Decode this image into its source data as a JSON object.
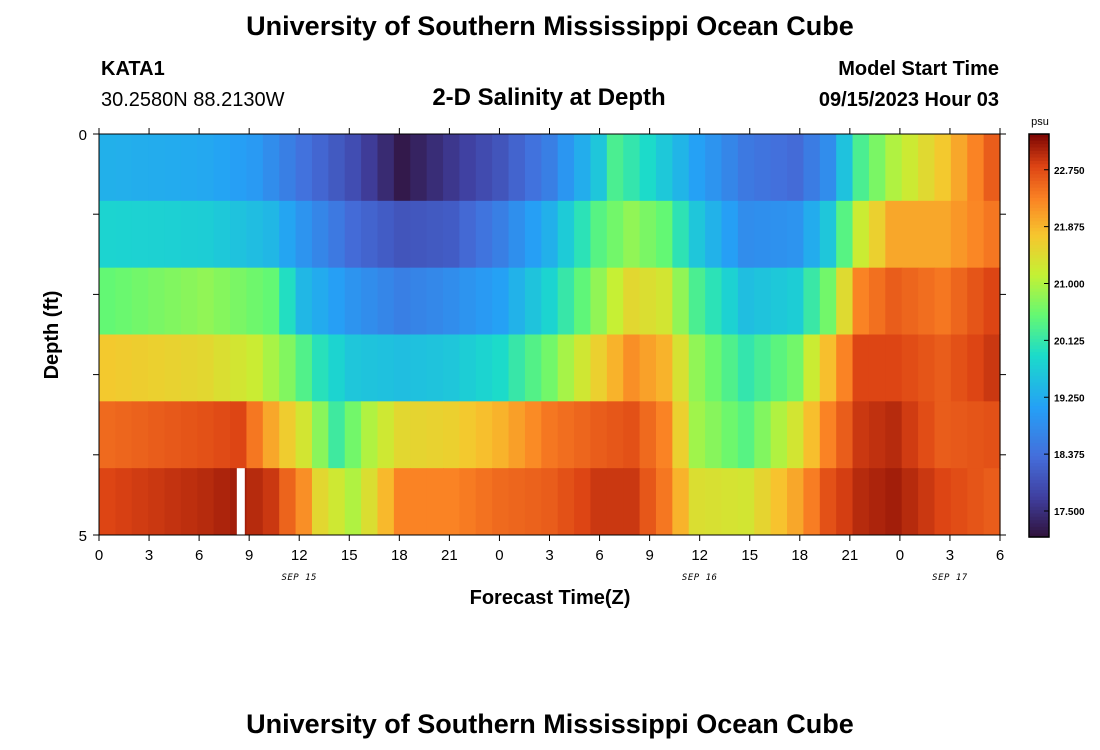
{
  "header": {
    "title": "University of Southern Mississippi Ocean Cube",
    "station": "KATA1",
    "coords": "30.2580N  88.2130W",
    "chart_title": "2-D Salinity at Depth",
    "model_label": "Model Start Time",
    "model_time": "09/15/2023 Hour 03"
  },
  "footer": {
    "title": "University of Southern Mississippi Ocean Cube"
  },
  "colors": {
    "background": "#ffffff",
    "axis": "#000000",
    "missing": "#ffffff"
  },
  "chart_data": {
    "type": "heatmap",
    "title": "2-D Salinity at Depth",
    "xlabel": "Forecast Time(Z)",
    "ylabel": "Depth (ft)",
    "x_hours": [
      0,
      54
    ],
    "y_range": [
      0,
      5
    ],
    "y_tick_labels": [
      "0",
      "5"
    ],
    "x_tick_labels": [
      "0",
      "3",
      "6",
      "9",
      "12",
      "15",
      "18",
      "21",
      "0",
      "3",
      "6",
      "9",
      "12",
      "15",
      "18",
      "21",
      "0",
      "3",
      "6"
    ],
    "date_labels": [
      {
        "text": "SEP 15",
        "hour": 12
      },
      {
        "text": "SEP 16",
        "hour": 36
      },
      {
        "text": "SEP 17",
        "hour": 51
      }
    ],
    "depth_layers": 6,
    "time_steps": 55,
    "missing_cells": [
      {
        "layer": 5,
        "hour": 8.5
      }
    ],
    "colorbar": {
      "unit": "psu",
      "min": 17.1,
      "max": 23.3,
      "tick_values": [
        17.5,
        18.375,
        19.25,
        20.125,
        21.0,
        21.875,
        22.75
      ],
      "tick_labels": [
        "17.500",
        "18.375",
        "19.250",
        "20.125",
        "21.000",
        "21.875",
        "22.750"
      ]
    },
    "series": [
      {
        "name": "layer 0",
        "knots": [
          [
            0,
            19.3
          ],
          [
            6,
            19.2
          ],
          [
            9,
            19.0
          ],
          [
            12,
            18.4
          ],
          [
            15,
            17.9
          ],
          [
            18,
            17.2
          ],
          [
            21,
            17.6
          ],
          [
            24,
            18.0
          ],
          [
            27,
            18.6
          ],
          [
            30,
            19.6
          ],
          [
            31,
            20.3
          ],
          [
            33,
            19.9
          ],
          [
            36,
            19.1
          ],
          [
            39,
            18.5
          ],
          [
            42,
            18.3
          ],
          [
            44,
            18.8
          ],
          [
            46,
            20.3
          ],
          [
            48,
            21.0
          ],
          [
            51,
            21.7
          ],
          [
            54,
            22.6
          ]
        ]
      },
      {
        "name": "layer 1",
        "knots": [
          [
            0,
            19.8
          ],
          [
            6,
            19.7
          ],
          [
            10,
            19.4
          ],
          [
            12,
            18.9
          ],
          [
            15,
            18.3
          ],
          [
            18,
            18.0
          ],
          [
            21,
            18.1
          ],
          [
            24,
            18.6
          ],
          [
            27,
            19.3
          ],
          [
            30,
            20.4
          ],
          [
            32,
            20.8
          ],
          [
            34,
            20.5
          ],
          [
            36,
            19.6
          ],
          [
            39,
            18.8
          ],
          [
            42,
            18.9
          ],
          [
            44,
            19.6
          ],
          [
            46,
            21.2
          ],
          [
            48,
            22.0
          ],
          [
            51,
            22.0
          ],
          [
            54,
            22.4
          ]
        ]
      },
      {
        "name": "layer 2",
        "knots": [
          [
            0,
            20.5
          ],
          [
            6,
            20.8
          ],
          [
            10,
            20.5
          ],
          [
            12,
            19.4
          ],
          [
            15,
            18.9
          ],
          [
            18,
            18.6
          ],
          [
            21,
            18.8
          ],
          [
            24,
            19.1
          ],
          [
            27,
            19.8
          ],
          [
            30,
            20.8
          ],
          [
            32,
            21.5
          ],
          [
            34,
            21.3
          ],
          [
            36,
            20.3
          ],
          [
            39,
            19.5
          ],
          [
            42,
            19.7
          ],
          [
            44,
            20.6
          ],
          [
            46,
            22.3
          ],
          [
            48,
            22.6
          ],
          [
            51,
            22.4
          ],
          [
            54,
            22.8
          ]
        ]
      },
      {
        "name": "layer 3",
        "knots": [
          [
            0,
            21.7
          ],
          [
            6,
            21.5
          ],
          [
            9,
            21.2
          ],
          [
            11,
            20.7
          ],
          [
            13,
            20.0
          ],
          [
            15,
            19.6
          ],
          [
            18,
            19.5
          ],
          [
            21,
            19.6
          ],
          [
            24,
            19.9
          ],
          [
            27,
            20.6
          ],
          [
            30,
            21.6
          ],
          [
            32,
            22.2
          ],
          [
            34,
            21.9
          ],
          [
            36,
            20.8
          ],
          [
            39,
            20.1
          ],
          [
            42,
            20.6
          ],
          [
            44,
            21.8
          ],
          [
            46,
            22.8
          ],
          [
            48,
            22.8
          ],
          [
            51,
            22.6
          ],
          [
            54,
            22.9
          ]
        ]
      },
      {
        "name": "layer 4",
        "knots": [
          [
            0,
            22.5
          ],
          [
            6,
            22.7
          ],
          [
            8,
            22.8
          ],
          [
            10,
            22.0
          ],
          [
            12,
            21.3
          ],
          [
            14,
            20.2
          ],
          [
            16,
            21.0
          ],
          [
            18,
            21.5
          ],
          [
            21,
            21.6
          ],
          [
            24,
            21.9
          ],
          [
            27,
            22.4
          ],
          [
            30,
            22.6
          ],
          [
            32,
            22.7
          ],
          [
            34,
            22.3
          ],
          [
            36,
            20.9
          ],
          [
            39,
            20.4
          ],
          [
            42,
            21.3
          ],
          [
            44,
            22.3
          ],
          [
            46,
            22.9
          ],
          [
            48,
            23.0
          ],
          [
            51,
            22.6
          ],
          [
            54,
            22.7
          ]
        ]
      },
      {
        "name": "layer 5",
        "knots": [
          [
            0,
            22.8
          ],
          [
            6,
            23.0
          ],
          [
            8,
            23.1
          ],
          [
            10,
            22.9
          ],
          [
            12,
            22.2
          ],
          [
            13,
            21.5
          ],
          [
            15,
            21.0
          ],
          [
            16,
            21.4
          ],
          [
            18,
            22.3
          ],
          [
            21,
            22.3
          ],
          [
            24,
            22.5
          ],
          [
            27,
            22.6
          ],
          [
            30,
            22.9
          ],
          [
            32,
            22.9
          ],
          [
            34,
            22.4
          ],
          [
            36,
            21.4
          ],
          [
            39,
            21.3
          ],
          [
            42,
            22.0
          ],
          [
            44,
            22.7
          ],
          [
            46,
            23.0
          ],
          [
            48,
            23.1
          ],
          [
            51,
            22.8
          ],
          [
            54,
            22.6
          ]
        ]
      }
    ]
  }
}
